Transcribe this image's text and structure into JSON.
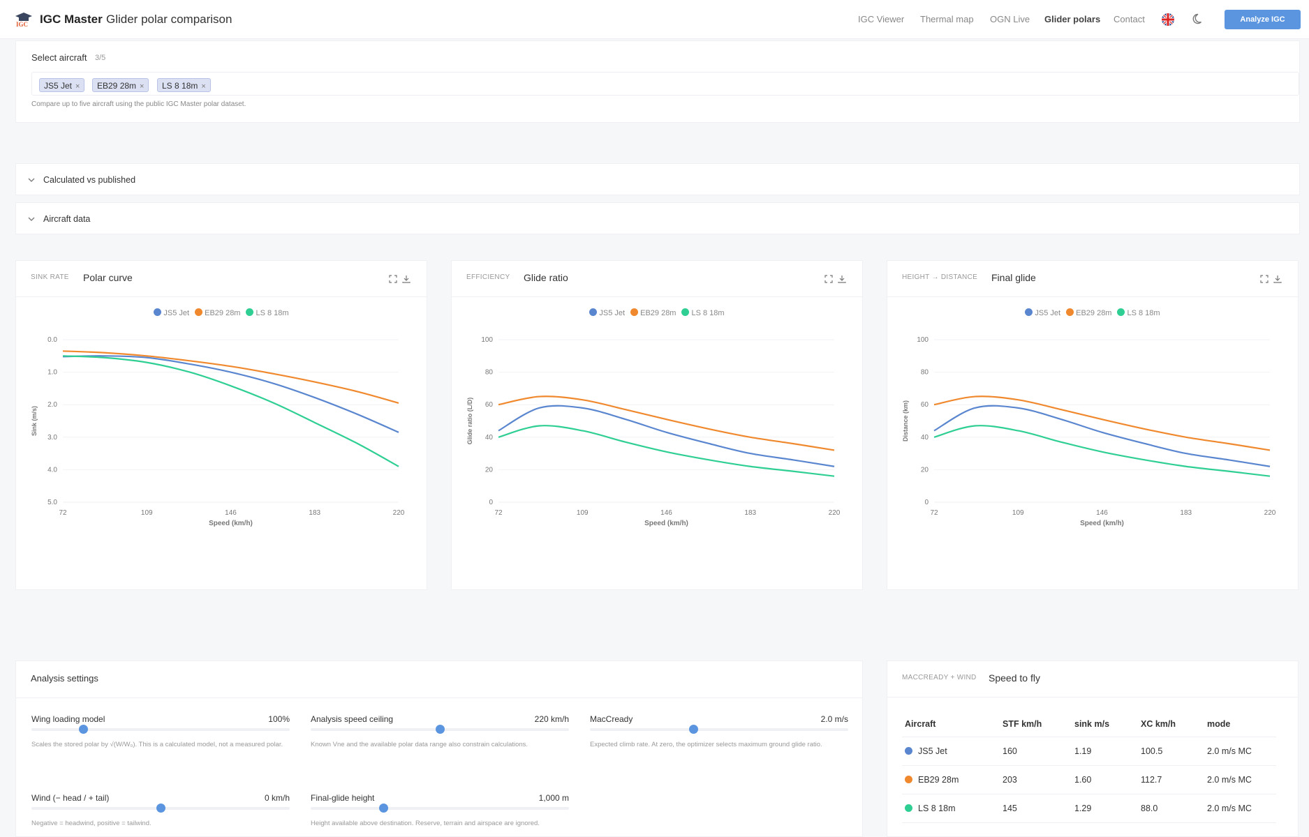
{
  "header": {
    "brand": "IGC Master",
    "subtitle": "Glider polar comparison",
    "nav": [
      "IGC Viewer",
      "Thermal map",
      "OGN Live",
      "Glider polars",
      "Contact"
    ],
    "cta": "Analyze IGC"
  },
  "select": {
    "label": "Select aircraft",
    "count": "3/5",
    "tags": [
      "JS5 Jet",
      "EB29 28m",
      "LS 8 18m"
    ],
    "hint": "Compare up to five aircraft using the public IGC Master polar dataset."
  },
  "sections": {
    "calc": "Calculated vs published",
    "aircraft": "Aircraft data"
  },
  "colors": {
    "JS5 Jet": "#5a86cf",
    "EB29 28m": "#f0892e",
    "LS 8 18m": "#2fcf94",
    "accent": "#5b95e0"
  },
  "panels": [
    {
      "eyebrow": "SINK RATE",
      "title": "Polar curve"
    },
    {
      "eyebrow": "EFFICIENCY",
      "title": "Glide ratio"
    },
    {
      "eyebrow": "HEIGHT → DISTANCE",
      "title": "Final glide"
    }
  ],
  "chart_data": [
    {
      "type": "line",
      "title": "Polar curve",
      "xlabel": "Speed (km/h)",
      "ylabel": "Sink (m/s)",
      "xlim": [
        72,
        220
      ],
      "ylim": [
        0,
        5
      ],
      "y_inverted": true,
      "xticks": [
        "72",
        "109",
        "146",
        "183",
        "220"
      ],
      "yticks": [
        "0.0",
        "1.0",
        "2.0",
        "3.0",
        "4.0",
        "5.0"
      ],
      "x": [
        72,
        90,
        109,
        128,
        146,
        165,
        183,
        202,
        220
      ],
      "series": [
        {
          "name": "JS5 Jet",
          "values": [
            0.52,
            0.5,
            0.55,
            0.75,
            1.0,
            1.35,
            1.78,
            2.3,
            2.85
          ]
        },
        {
          "name": "EB29 28m",
          "values": [
            0.35,
            0.4,
            0.5,
            0.65,
            0.82,
            1.05,
            1.3,
            1.6,
            1.95
          ]
        },
        {
          "name": "LS 8 18m",
          "values": [
            0.5,
            0.55,
            0.7,
            1.0,
            1.42,
            1.95,
            2.55,
            3.2,
            3.9
          ]
        }
      ]
    },
    {
      "type": "line",
      "title": "Glide ratio",
      "xlabel": "Speed (km/h)",
      "ylabel": "Glide ratio (L/D)",
      "xlim": [
        72,
        220
      ],
      "ylim": [
        0,
        100
      ],
      "xticks": [
        "72",
        "109",
        "146",
        "183",
        "220"
      ],
      "yticks": [
        "0",
        "20",
        "40",
        "60",
        "80",
        "100"
      ],
      "x": [
        72,
        90,
        109,
        128,
        146,
        165,
        183,
        202,
        220
      ],
      "series": [
        {
          "name": "JS5 Jet",
          "values": [
            44,
            58,
            58,
            51,
            43,
            36,
            30,
            26,
            22
          ]
        },
        {
          "name": "EB29 28m",
          "values": [
            60,
            65,
            63,
            57,
            51,
            45,
            40,
            36,
            32
          ]
        },
        {
          "name": "LS 8 18m",
          "values": [
            40,
            47,
            44,
            37,
            31,
            26,
            22,
            19,
            16
          ]
        }
      ]
    },
    {
      "type": "line",
      "title": "Final glide",
      "xlabel": "Speed (km/h)",
      "ylabel": "Distance (km)",
      "xlim": [
        72,
        220
      ],
      "ylim": [
        0,
        100
      ],
      "xticks": [
        "72",
        "109",
        "146",
        "183",
        "220"
      ],
      "yticks": [
        "0",
        "20",
        "40",
        "60",
        "80",
        "100"
      ],
      "x": [
        72,
        90,
        109,
        128,
        146,
        165,
        183,
        202,
        220
      ],
      "series": [
        {
          "name": "JS5 Jet",
          "values": [
            44,
            58,
            58,
            51,
            43,
            36,
            30,
            26,
            22
          ]
        },
        {
          "name": "EB29 28m",
          "values": [
            60,
            65,
            63,
            57,
            51,
            45,
            40,
            36,
            32
          ]
        },
        {
          "name": "LS 8 18m",
          "values": [
            40,
            47,
            44,
            37,
            31,
            26,
            22,
            19,
            16
          ]
        }
      ]
    }
  ],
  "settings": {
    "title": "Analysis settings",
    "sliders": [
      {
        "label": "Wing loading model",
        "value": "100%",
        "fraction": 0.2,
        "help": "Scales the stored polar by √(W/W₀). This is a calculated model, not a measured polar."
      },
      {
        "label": "Analysis speed ceiling",
        "value": "220 km/h",
        "fraction": 0.5,
        "help": "Known Vne and the available polar data range also constrain calculations."
      },
      {
        "label": "MacCready",
        "value": "2.0 m/s",
        "fraction": 0.4,
        "help": "Expected climb rate. At zero, the optimizer selects maximum ground glide ratio."
      },
      {
        "label": "Wind (− head / + tail)",
        "value": "0 km/h",
        "fraction": 0.5,
        "help": "Negative = headwind, positive = tailwind."
      },
      {
        "label": "Final-glide height",
        "value": "1,000 m",
        "fraction": 0.28,
        "help": "Height available above destination. Reserve, terrain and airspace are ignored."
      }
    ]
  },
  "stf": {
    "eyebrow": "MACCREADY + WIND",
    "title": "Speed to fly",
    "columns": [
      "Aircraft",
      "STF km/h",
      "sink m/s",
      "XC km/h",
      "mode"
    ],
    "rows": [
      [
        "JS5 Jet",
        "160",
        "1.19",
        "100.5",
        "2.0 m/s MC"
      ],
      [
        "EB29 28m",
        "203",
        "1.60",
        "112.7",
        "2.0 m/s MC"
      ],
      [
        "LS 8 18m",
        "145",
        "1.29",
        "88.0",
        "2.0 m/s MC"
      ]
    ]
  }
}
